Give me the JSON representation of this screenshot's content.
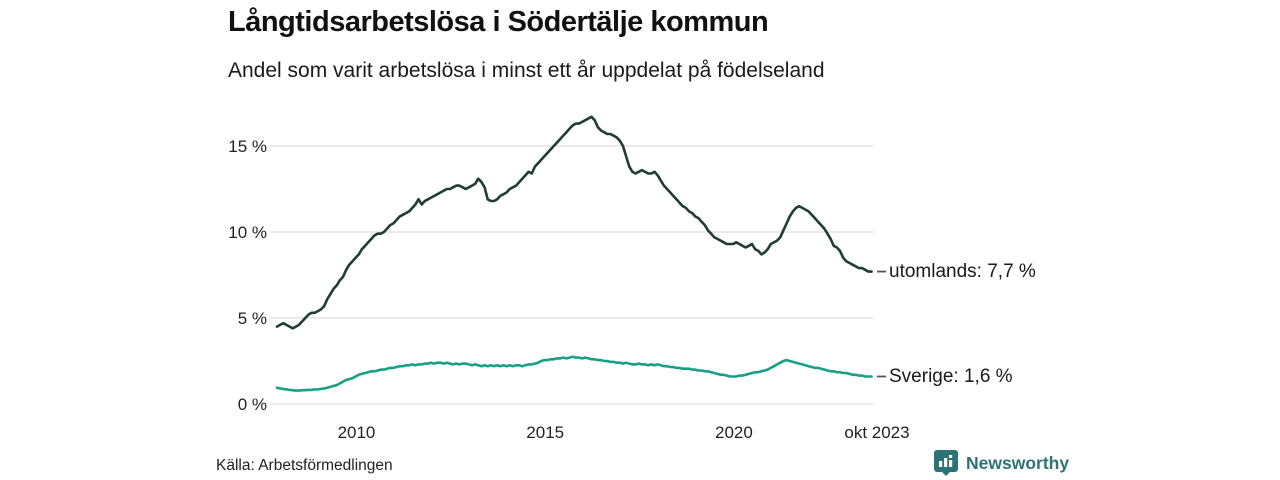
{
  "header": {
    "title": "Långtidsarbetslösa i Södertälje kommun",
    "subtitle": "Andel som varit arbetslösa i minst ett år uppdelat på födelseland"
  },
  "footer": {
    "source": "Källa: Arbetsförmedlingen",
    "brand": "Newsworthy"
  },
  "colors": {
    "series_utomlands": "#213c35",
    "series_sverige": "#17a086",
    "gridline": "#e4e4e4",
    "connector": "#555555",
    "brand_teal": "#2e7374",
    "text": "#1a1a1a"
  },
  "chart_data": {
    "type": "line",
    "title": "Långtidsarbetslösa i Södertälje kommun",
    "subtitle": "Andel som varit arbetslösa i minst ett år uppdelat på födelseland",
    "unit": "%",
    "grid": "horizontal",
    "legend_position": "line-end-labels",
    "xlim": [
      2008.0,
      2023.79
    ],
    "ylim": [
      0,
      17
    ],
    "x_ticks": [
      {
        "label": "2010",
        "value": 2010
      },
      {
        "label": "2015",
        "value": 2015
      },
      {
        "label": "2020",
        "value": 2020
      },
      {
        "label": "okt 2023",
        "value": 2023.79
      }
    ],
    "y_ticks": [
      {
        "label": "0 %",
        "value": 0
      },
      {
        "label": "5 %",
        "value": 5
      },
      {
        "label": "10 %",
        "value": 10
      },
      {
        "label": "15 %",
        "value": 15
      }
    ],
    "x_start_year": 2008.0,
    "x_step_months": 1,
    "series": [
      {
        "name": "utomlands",
        "end_label": "utomlands: 7,7 %",
        "last_value": 7.7,
        "color": "#213c35",
        "values": [
          4.5,
          4.6,
          4.7,
          4.6,
          4.5,
          4.4,
          4.5,
          4.6,
          4.8,
          5.0,
          5.2,
          5.3,
          5.3,
          5.4,
          5.5,
          5.7,
          6.1,
          6.4,
          6.7,
          6.9,
          7.2,
          7.4,
          7.8,
          8.1,
          8.3,
          8.5,
          8.7,
          9.0,
          9.2,
          9.4,
          9.6,
          9.8,
          9.9,
          9.9,
          10.0,
          10.2,
          10.4,
          10.5,
          10.7,
          10.9,
          11.0,
          11.1,
          11.2,
          11.4,
          11.6,
          11.9,
          11.6,
          11.8,
          11.9,
          12.0,
          12.1,
          12.2,
          12.3,
          12.4,
          12.5,
          12.5,
          12.6,
          12.7,
          12.7,
          12.6,
          12.5,
          12.6,
          12.7,
          12.8,
          13.1,
          12.9,
          12.6,
          11.9,
          11.8,
          11.8,
          11.9,
          12.1,
          12.2,
          12.3,
          12.5,
          12.6,
          12.7,
          12.9,
          13.1,
          13.3,
          13.5,
          13.4,
          13.8,
          14.0,
          14.2,
          14.4,
          14.6,
          14.8,
          15.0,
          15.2,
          15.4,
          15.6,
          15.8,
          16.0,
          16.2,
          16.3,
          16.3,
          16.4,
          16.5,
          16.6,
          16.7,
          16.5,
          16.1,
          15.9,
          15.8,
          15.7,
          15.7,
          15.6,
          15.5,
          15.3,
          15.0,
          14.4,
          13.8,
          13.5,
          13.4,
          13.5,
          13.6,
          13.5,
          13.4,
          13.4,
          13.5,
          13.3,
          13.0,
          12.7,
          12.5,
          12.3,
          12.1,
          11.9,
          11.7,
          11.5,
          11.4,
          11.2,
          11.1,
          10.9,
          10.8,
          10.6,
          10.4,
          10.1,
          9.9,
          9.7,
          9.6,
          9.5,
          9.4,
          9.3,
          9.3,
          9.3,
          9.4,
          9.3,
          9.2,
          9.1,
          9.2,
          9.3,
          9.0,
          8.9,
          8.7,
          8.8,
          9.0,
          9.3,
          9.4,
          9.5,
          9.7,
          10.1,
          10.5,
          10.9,
          11.2,
          11.4,
          11.5,
          11.4,
          11.3,
          11.2,
          11.0,
          10.8,
          10.6,
          10.4,
          10.2,
          9.9,
          9.6,
          9.2,
          9.1,
          8.9,
          8.5,
          8.3,
          8.2,
          8.1,
          8.0,
          7.9,
          7.9,
          7.8,
          7.7,
          7.7
        ]
      },
      {
        "name": "Sverige",
        "end_label": "Sverige: 1,6 %",
        "last_value": 1.6,
        "color": "#17a086",
        "values": [
          0.95,
          0.9,
          0.88,
          0.85,
          0.82,
          0.8,
          0.78,
          0.78,
          0.8,
          0.8,
          0.82,
          0.82,
          0.85,
          0.85,
          0.88,
          0.9,
          0.95,
          1.0,
          1.05,
          1.1,
          1.2,
          1.3,
          1.4,
          1.45,
          1.5,
          1.6,
          1.7,
          1.75,
          1.8,
          1.85,
          1.9,
          1.9,
          1.95,
          2.0,
          2.0,
          2.05,
          2.1,
          2.1,
          2.15,
          2.2,
          2.2,
          2.25,
          2.25,
          2.3,
          2.25,
          2.3,
          2.3,
          2.35,
          2.35,
          2.4,
          2.35,
          2.4,
          2.4,
          2.35,
          2.4,
          2.35,
          2.3,
          2.35,
          2.3,
          2.35,
          2.35,
          2.3,
          2.25,
          2.3,
          2.25,
          2.2,
          2.25,
          2.2,
          2.25,
          2.2,
          2.25,
          2.2,
          2.25,
          2.2,
          2.25,
          2.2,
          2.25,
          2.25,
          2.2,
          2.25,
          2.3,
          2.3,
          2.35,
          2.4,
          2.5,
          2.55,
          2.55,
          2.6,
          2.6,
          2.65,
          2.65,
          2.7,
          2.65,
          2.7,
          2.75,
          2.7,
          2.7,
          2.65,
          2.7,
          2.65,
          2.6,
          2.6,
          2.55,
          2.55,
          2.5,
          2.5,
          2.45,
          2.45,
          2.4,
          2.4,
          2.35,
          2.4,
          2.35,
          2.3,
          2.3,
          2.35,
          2.3,
          2.3,
          2.25,
          2.3,
          2.25,
          2.3,
          2.25,
          2.2,
          2.2,
          2.15,
          2.15,
          2.1,
          2.1,
          2.05,
          2.05,
          2.05,
          2.0,
          2.0,
          1.95,
          1.95,
          1.9,
          1.9,
          1.85,
          1.8,
          1.75,
          1.7,
          1.7,
          1.65,
          1.6,
          1.6,
          1.6,
          1.65,
          1.65,
          1.7,
          1.75,
          1.8,
          1.85,
          1.85,
          1.9,
          1.95,
          2.0,
          2.1,
          2.2,
          2.3,
          2.4,
          2.5,
          2.55,
          2.5,
          2.45,
          2.4,
          2.35,
          2.3,
          2.25,
          2.2,
          2.15,
          2.1,
          2.1,
          2.05,
          2.0,
          1.95,
          1.9,
          1.9,
          1.85,
          1.85,
          1.8,
          1.8,
          1.75,
          1.7,
          1.7,
          1.65,
          1.65,
          1.6,
          1.6,
          1.6
        ]
      }
    ]
  }
}
